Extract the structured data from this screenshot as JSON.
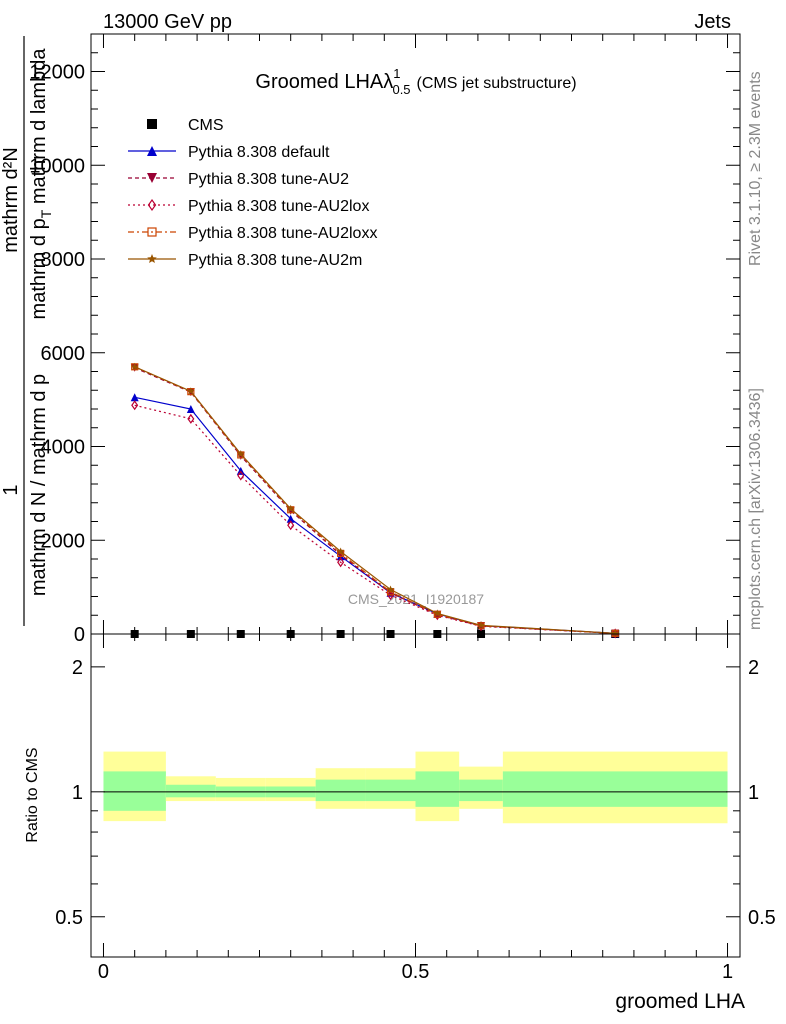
{
  "header": {
    "left": "13000 GeV pp",
    "right": "Jets",
    "rivet": "Rivet 3.1.10, ≥ 2.3M events",
    "mcplots": "mcplots.cern.ch [arXiv:1306.3436]",
    "watermark": "CMS_2021_I1920187"
  },
  "chart_data": {
    "type": "line",
    "title_main": "Groomed LHA",
    "title_lambda": "λ",
    "title_sup": "1",
    "title_sub": "0.5",
    "title_extra": "(CMS jet substructure)",
    "xlabel": "groomed LHA",
    "ylabel_num": "1",
    "ylabel_den": "mathrm d N / mathrm d p",
    "ylabel_line1": "mathrm d²N",
    "ylabel_line2": "mathrm d p",
    "ylabel_line2_sub": "T",
    "ylabel_line2_end": " mathrm d lambda",
    "ratio_ylabel": "Ratio to CMS",
    "xlim": [
      -0.02,
      1.02
    ],
    "ylim": [
      0,
      12800
    ],
    "ratio_ylim": [
      0.4,
      2.4
    ],
    "x_ticks": [
      "0",
      "0.5",
      "1"
    ],
    "y_ticks": [
      "0",
      "2000",
      "4000",
      "6000",
      "8000",
      "10000",
      "12000"
    ],
    "ratio_ticks": [
      "0.5",
      "1",
      "2"
    ],
    "bin_edges": [
      0.0,
      0.1,
      0.18,
      0.26,
      0.34,
      0.42,
      0.5,
      0.57,
      0.64,
      1.0
    ],
    "x": [
      0.05,
      0.14,
      0.22,
      0.3,
      0.38,
      0.46,
      0.535,
      0.605,
      0.82
    ],
    "series": [
      {
        "name": "CMS",
        "color": "#000000",
        "marker": "square",
        "dash": "",
        "values": [
          0,
          0,
          0,
          0,
          0,
          0,
          0,
          0,
          0
        ]
      },
      {
        "name": "Pythia 8.308 default",
        "color": "#0000cc",
        "marker": "triangle-up",
        "dash": "",
        "values": [
          5050,
          4800,
          3480,
          2460,
          1660,
          880,
          430,
          180,
          15
        ]
      },
      {
        "name": "Pythia 8.308 tune-AU2",
        "color": "#990033",
        "marker": "triangle-down",
        "dash": "4,3",
        "values": [
          5680,
          5160,
          3800,
          2630,
          1690,
          880,
          410,
          170,
          12
        ]
      },
      {
        "name": "Pythia 8.308 tune-AU2lox",
        "color": "#bb0033",
        "marker": "diamond",
        "dash": "2,3",
        "values": [
          4880,
          4590,
          3380,
          2320,
          1530,
          830,
          400,
          165,
          12
        ]
      },
      {
        "name": "Pythia 8.308 tune-AU2loxx",
        "color": "#cc4400",
        "marker": "square-open",
        "dash": "6,3,2,3",
        "values": [
          5700,
          5170,
          3820,
          2650,
          1720,
          900,
          420,
          175,
          13
        ]
      },
      {
        "name": "Pythia 8.308 tune-AU2m",
        "color": "#995500",
        "marker": "star",
        "dash": "",
        "values": [
          5700,
          5180,
          3840,
          2670,
          1760,
          950,
          440,
          185,
          15
        ]
      }
    ],
    "ratio_bands": {
      "inner": [
        [
          0.9,
          1.12
        ],
        [
          0.97,
          1.04
        ],
        [
          0.97,
          1.03
        ],
        [
          0.97,
          1.03
        ],
        [
          0.95,
          1.07
        ],
        [
          0.95,
          1.07
        ],
        [
          0.92,
          1.12
        ],
        [
          0.95,
          1.07
        ],
        [
          0.92,
          1.12
        ]
      ],
      "outer": [
        [
          0.85,
          1.25
        ],
        [
          0.95,
          1.09
        ],
        [
          0.95,
          1.08
        ],
        [
          0.95,
          1.08
        ],
        [
          0.91,
          1.14
        ],
        [
          0.91,
          1.14
        ],
        [
          0.85,
          1.25
        ],
        [
          0.91,
          1.15
        ],
        [
          0.84,
          1.25
        ]
      ]
    },
    "inner_color": "#99ff99",
    "outer_color": "#ffff99"
  }
}
